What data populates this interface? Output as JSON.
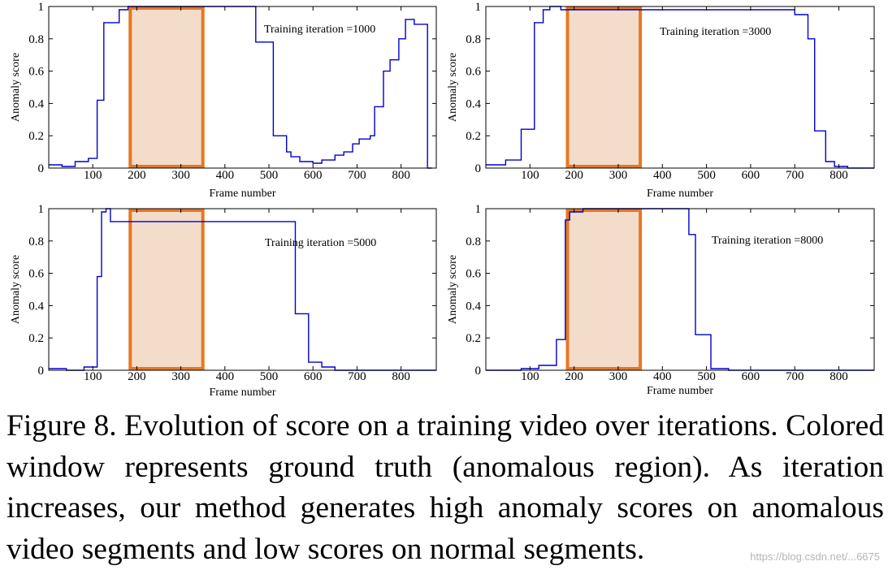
{
  "figure": {
    "caption": "Figure 8. Evolution of score on a training video over iterations. Colored window represents ground truth (anomalous region). As iteration increases, our method generates high anomaly scores on anomalous video segments and low scores on normal segments.",
    "watermark": "https://blog.csdn.net/...6675",
    "colors": {
      "line": "#0000cc",
      "window_fill": "#f3dcc9",
      "window_stroke": "#e87722",
      "axes": "#000000"
    }
  },
  "chart_data": [
    {
      "type": "line",
      "annotation": "Training iteration =1000",
      "xlabel": "Frame number",
      "ylabel": "Anomaly score",
      "xlim": [
        0,
        880
      ],
      "ylim": [
        0,
        1
      ],
      "xticks": [
        100,
        200,
        300,
        400,
        500,
        600,
        700,
        800
      ],
      "yticks": [
        0,
        0.2,
        0.4,
        0.6,
        0.8,
        1
      ],
      "ground_truth_window": [
        185,
        350
      ],
      "series": [
        {
          "x": [
            0,
            30,
            30,
            60,
            60,
            90,
            90,
            110,
            110,
            125,
            125,
            160,
            160,
            180,
            180,
            470,
            470,
            510,
            510,
            540,
            540,
            550,
            550,
            570,
            570,
            600,
            600,
            620,
            620,
            650,
            650,
            670,
            670,
            690,
            690,
            705,
            705,
            730,
            730,
            740,
            740,
            760,
            760,
            775,
            775,
            795,
            795,
            810,
            810,
            830,
            830,
            860,
            860,
            870
          ],
          "y": [
            0.02,
            0.02,
            0.01,
            0.01,
            0.04,
            0.04,
            0.06,
            0.06,
            0.42,
            0.42,
            0.9,
            0.9,
            0.98,
            0.98,
            1.0,
            1.0,
            0.78,
            0.78,
            0.2,
            0.2,
            0.1,
            0.1,
            0.07,
            0.07,
            0.04,
            0.04,
            0.03,
            0.03,
            0.05,
            0.05,
            0.08,
            0.08,
            0.1,
            0.1,
            0.15,
            0.15,
            0.18,
            0.18,
            0.2,
            0.2,
            0.38,
            0.38,
            0.6,
            0.6,
            0.67,
            0.67,
            0.8,
            0.8,
            0.92,
            0.92,
            0.89,
            0.89,
            0.0,
            0.0
          ]
        }
      ]
    },
    {
      "type": "line",
      "annotation": "Training iteration =3000",
      "xlabel": "Frame number",
      "ylabel": "Anomaly score",
      "xlim": [
        0,
        880
      ],
      "ylim": [
        0,
        1
      ],
      "xticks": [
        100,
        200,
        300,
        400,
        500,
        600,
        700,
        800
      ],
      "yticks": [
        0,
        0.2,
        0.4,
        0.6,
        0.8,
        1
      ],
      "ground_truth_window": [
        185,
        350
      ],
      "series": [
        {
          "x": [
            0,
            45,
            45,
            80,
            80,
            110,
            110,
            130,
            130,
            145,
            145,
            170,
            170,
            700,
            700,
            730,
            730,
            745,
            745,
            770,
            770,
            790,
            790,
            820,
            820,
            880
          ],
          "y": [
            0.02,
            0.02,
            0.05,
            0.05,
            0.24,
            0.24,
            0.9,
            0.9,
            0.98,
            0.98,
            1.0,
            1.0,
            0.98,
            0.98,
            0.95,
            0.95,
            0.8,
            0.8,
            0.23,
            0.23,
            0.04,
            0.04,
            0.01,
            0.01,
            0.0,
            0.0
          ]
        }
      ]
    },
    {
      "type": "line",
      "annotation": "Training iteration =5000",
      "xlabel": "Frame number",
      "ylabel": "Anomaly score",
      "xlim": [
        0,
        880
      ],
      "ylim": [
        0,
        1
      ],
      "xticks": [
        100,
        200,
        300,
        400,
        500,
        600,
        700,
        800
      ],
      "yticks": [
        0,
        0.2,
        0.4,
        0.6,
        0.8,
        1
      ],
      "ground_truth_window": [
        185,
        350
      ],
      "series": [
        {
          "x": [
            0,
            40,
            40,
            80,
            80,
            110,
            110,
            120,
            120,
            130,
            130,
            140,
            140,
            560,
            560,
            590,
            590,
            620,
            620,
            650,
            650,
            680,
            680,
            880
          ],
          "y": [
            0.01,
            0.01,
            0.0,
            0.0,
            0.02,
            0.02,
            0.58,
            0.58,
            0.98,
            0.98,
            1.0,
            1.0,
            0.92,
            0.92,
            0.35,
            0.35,
            0.05,
            0.05,
            0.02,
            0.02,
            0.0,
            0.0,
            0.0,
            0.0
          ]
        }
      ]
    },
    {
      "type": "line",
      "annotation": "Training iteration =8000",
      "xlabel": "Frame number",
      "ylabel": "Anomaly score",
      "xlim": [
        0,
        880
      ],
      "ylim": [
        0,
        1
      ],
      "xticks": [
        100,
        200,
        300,
        400,
        500,
        600,
        700,
        800
      ],
      "yticks": [
        0,
        0.2,
        0.4,
        0.6,
        0.8,
        1
      ],
      "ground_truth_window": [
        185,
        350
      ],
      "series": [
        {
          "x": [
            0,
            80,
            80,
            120,
            120,
            160,
            160,
            180,
            180,
            190,
            190,
            220,
            220,
            460,
            460,
            475,
            475,
            510,
            510,
            550,
            550,
            880
          ],
          "y": [
            0.0,
            0.0,
            0.01,
            0.01,
            0.03,
            0.03,
            0.19,
            0.19,
            0.93,
            0.93,
            0.98,
            0.98,
            1.0,
            1.0,
            0.84,
            0.84,
            0.22,
            0.22,
            0.01,
            0.01,
            0.0,
            0.0
          ]
        }
      ]
    }
  ]
}
